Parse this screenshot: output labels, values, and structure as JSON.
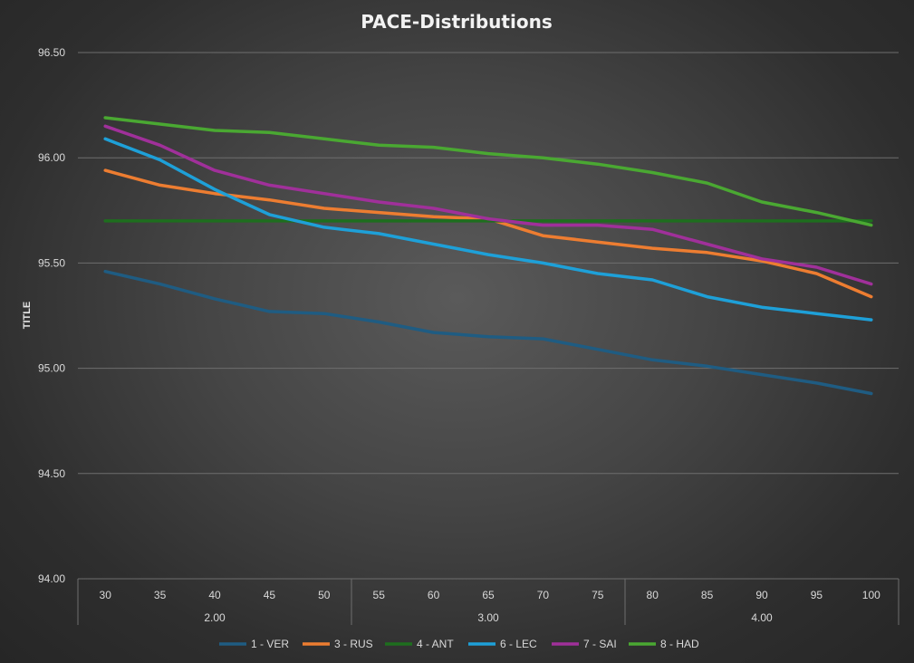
{
  "chart_data": {
    "type": "line",
    "title": "PACE-Distributions",
    "ylabel": "TITLE",
    "xlabel": "",
    "ylim": [
      94.0,
      96.5
    ],
    "yticks": [
      "94.00",
      "94.50",
      "95.00",
      "95.50",
      "96.00",
      "96.50"
    ],
    "x": [
      30,
      35,
      40,
      45,
      50,
      55,
      60,
      65,
      70,
      75,
      80,
      85,
      90,
      95,
      100
    ],
    "x_labels": [
      "30",
      "35",
      "40",
      "45",
      "50",
      "55",
      "60",
      "65",
      "70",
      "75",
      "80",
      "85",
      "90",
      "95",
      "100"
    ],
    "x_groups": [
      {
        "label": "2.00",
        "start": 0,
        "end": 4
      },
      {
        "label": "3.00",
        "start": 5,
        "end": 9
      },
      {
        "label": "4.00",
        "start": 10,
        "end": 14
      }
    ],
    "gridlines": true,
    "legend_position": "bottom",
    "series": [
      {
        "name": "1 - VER",
        "color": "#1f5c82",
        "values": [
          95.46,
          95.4,
          95.33,
          95.27,
          95.26,
          95.22,
          95.17,
          95.15,
          95.14,
          95.09,
          95.04,
          95.01,
          94.97,
          94.93,
          94.88
        ]
      },
      {
        "name": "3 - RUS",
        "color": "#ed7d31",
        "values": [
          95.94,
          95.87,
          95.83,
          95.8,
          95.76,
          95.74,
          95.72,
          95.71,
          95.63,
          95.6,
          95.57,
          95.55,
          95.51,
          95.45,
          95.34
        ]
      },
      {
        "name": "4 - ANT",
        "color": "#1e6e1e",
        "values": [
          95.7,
          95.7,
          95.7,
          95.7,
          95.7,
          95.7,
          95.7,
          95.7,
          95.7,
          95.7,
          95.7,
          95.7,
          95.7,
          95.7,
          95.7
        ]
      },
      {
        "name": "6 - LEC",
        "color": "#1ea0d8",
        "values": [
          96.09,
          95.99,
          95.85,
          95.73,
          95.67,
          95.64,
          95.59,
          95.54,
          95.5,
          95.45,
          95.42,
          95.34,
          95.29,
          95.26,
          95.23
        ]
      },
      {
        "name": "7 - SAI",
        "color": "#a0309a",
        "values": [
          96.15,
          96.06,
          95.94,
          95.87,
          95.83,
          95.79,
          95.76,
          95.71,
          95.68,
          95.68,
          95.66,
          95.59,
          95.52,
          95.48,
          95.4
        ]
      },
      {
        "name": "8 - HAD",
        "color": "#4aa832",
        "values": [
          96.19,
          96.16,
          96.13,
          96.12,
          96.09,
          96.06,
          96.05,
          96.02,
          96.0,
          95.97,
          95.93,
          95.88,
          95.79,
          95.74,
          95.68
        ]
      }
    ]
  }
}
